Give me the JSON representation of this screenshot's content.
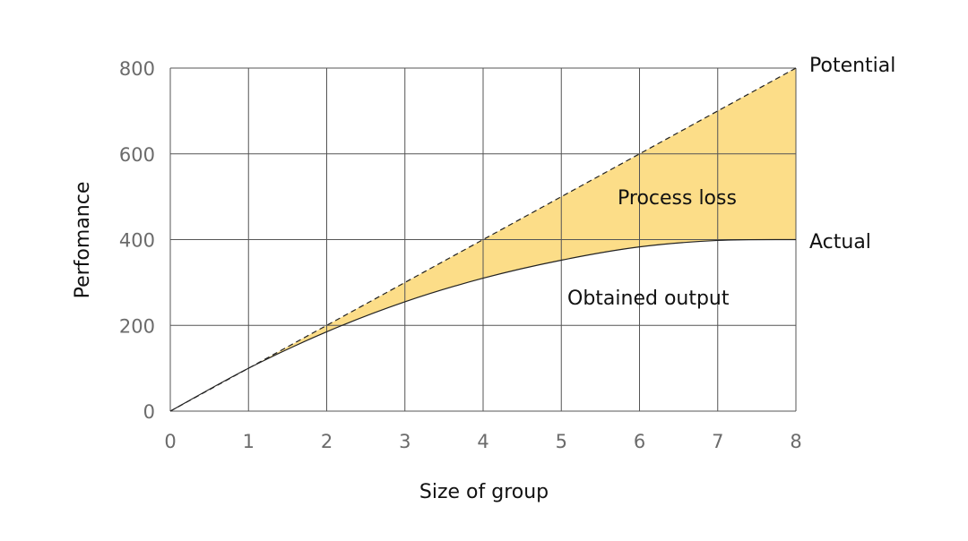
{
  "chart_data": {
    "type": "area",
    "title": "",
    "xlabel": "Size of group",
    "ylabel": "Perfomance",
    "xlim": [
      0,
      8
    ],
    "ylim": [
      0,
      800
    ],
    "x_ticks": [
      "0",
      "1",
      "2",
      "3",
      "4",
      "5",
      "6",
      "7",
      "8"
    ],
    "y_ticks": [
      "0",
      "200",
      "400",
      "600",
      "800"
    ],
    "grid": true,
    "x": [
      0,
      1,
      2,
      3,
      4,
      5,
      6,
      7,
      8
    ],
    "series": [
      {
        "name": "Potential",
        "style": "dashed",
        "values": [
          0,
          100,
          200,
          300,
          400,
          500,
          600,
          700,
          800
        ]
      },
      {
        "name": "Actual",
        "style": "solid",
        "values": [
          0,
          100,
          185,
          255,
          310,
          352,
          383,
          398,
          400
        ]
      }
    ],
    "filled_region": {
      "label": "Process loss",
      "between": [
        "Actual",
        "Potential"
      ],
      "color": "#fcdd88"
    },
    "annotations": [
      {
        "text": "Potential",
        "near": "end of Potential line (8, 800)"
      },
      {
        "text": "Actual",
        "near": "end of Actual line (8, 400)"
      },
      {
        "text": "Process loss",
        "at": [
          6.6,
          620
        ]
      },
      {
        "text": "Obtained output",
        "at": [
          6.2,
          380
        ]
      }
    ]
  },
  "labels": {
    "xlabel": "Size of group",
    "ylabel": "Perfomance",
    "potential": "Potential",
    "actual": "Actual",
    "process_loss": "Process loss",
    "obtained_output": "Obtained output",
    "x_ticks": [
      "0",
      "1",
      "2",
      "3",
      "4",
      "5",
      "6",
      "7",
      "8"
    ],
    "y_ticks": [
      "0",
      "200",
      "400",
      "600",
      "800"
    ]
  },
  "colors": {
    "fill": "#fcdd88",
    "grid": "#555555",
    "tick_text": "#6b6b6b",
    "text": "#111111"
  }
}
